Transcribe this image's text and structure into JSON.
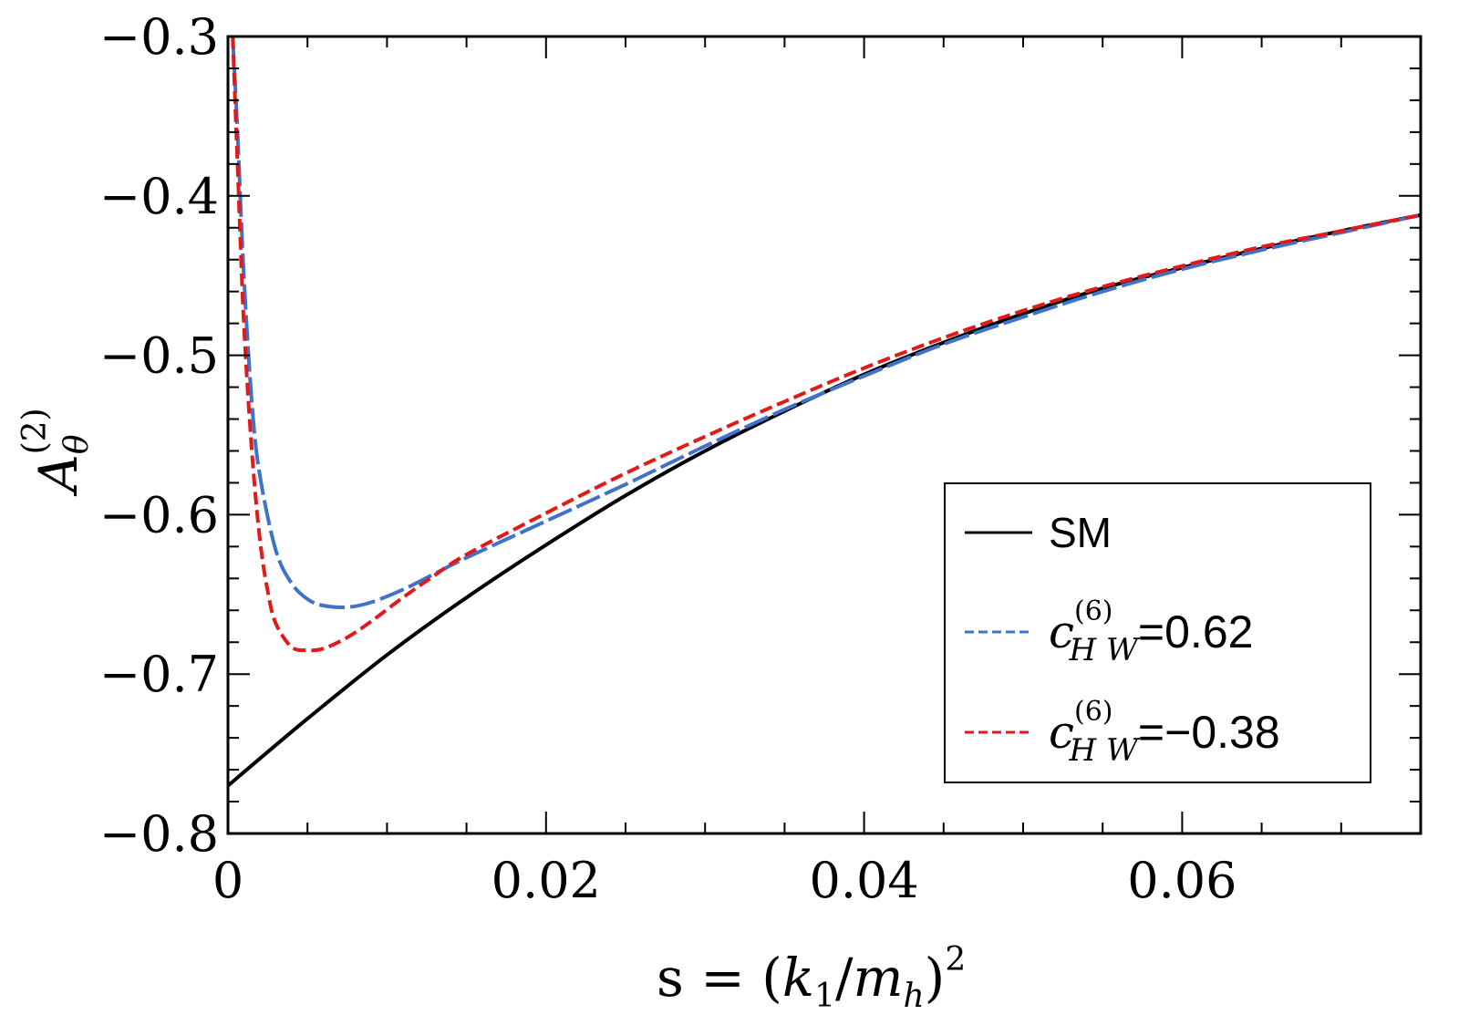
{
  "chart_data": {
    "type": "line",
    "xlim": [
      0,
      0.075
    ],
    "ylim": [
      -0.8,
      -0.3
    ],
    "x_ticks": [
      {
        "value": 0,
        "label": "0"
      },
      {
        "value": 0.02,
        "label": "0.02"
      },
      {
        "value": 0.04,
        "label": "0.04"
      },
      {
        "value": 0.06,
        "label": "0.06"
      }
    ],
    "y_ticks": [
      {
        "value": -0.3,
        "label": "−0.3"
      },
      {
        "value": -0.4,
        "label": "−0.4"
      },
      {
        "value": -0.5,
        "label": "−0.5"
      },
      {
        "value": -0.6,
        "label": "−0.6"
      },
      {
        "value": -0.7,
        "label": "−0.7"
      },
      {
        "value": -0.8,
        "label": "−0.8"
      }
    ],
    "xlabel": {
      "prefix": "s = (",
      "k": "k",
      "k_sub": "1",
      "slash": "/",
      "m": "m",
      "m_sub": "h",
      "close": ")",
      "power": "2"
    },
    "ylabel": {
      "main": "A",
      "sub": "θ",
      "sup": "(2)"
    },
    "legend": {
      "position": "bottom-right",
      "entries": [
        {
          "label": "SM"
        },
        {
          "c": "c",
          "sup": "(6)",
          "sub": "H W",
          "value": "=0.62"
        },
        {
          "c": "c",
          "sup": "(6)",
          "sub": "H W",
          "value": "=−0.38"
        }
      ]
    },
    "series": [
      {
        "name": "SM",
        "color": "#000000",
        "style": "solid",
        "x": [
          0,
          0.005,
          0.01,
          0.015,
          0.02,
          0.025,
          0.03,
          0.035,
          0.04,
          0.045,
          0.05,
          0.055,
          0.06,
          0.065,
          0.07,
          0.075
        ],
        "y": [
          -0.77,
          -0.728,
          -0.688,
          -0.652,
          -0.619,
          -0.588,
          -0.56,
          -0.535,
          -0.512,
          -0.492,
          -0.474,
          -0.458,
          -0.445,
          -0.433,
          -0.422,
          -0.412
        ]
      },
      {
        "name": "c_HW=0.62",
        "color": "#3f72cd",
        "style": "dashed",
        "x": [
          0.0003,
          0.0006,
          0.001,
          0.0015,
          0.002,
          0.003,
          0.004,
          0.005,
          0.006,
          0.0075,
          0.009,
          0.011,
          0.013,
          0.015,
          0.02,
          0.025,
          0.03,
          0.035,
          0.04,
          0.045,
          0.05,
          0.055,
          0.06,
          0.065,
          0.07,
          0.075
        ],
        "y": [
          -0.3,
          -0.36,
          -0.45,
          -0.53,
          -0.575,
          -0.622,
          -0.643,
          -0.653,
          -0.657,
          -0.658,
          -0.655,
          -0.647,
          -0.637,
          -0.627,
          -0.604,
          -0.581,
          -0.557,
          -0.534,
          -0.513,
          -0.493,
          -0.476,
          -0.46,
          -0.446,
          -0.434,
          -0.423,
          -0.412
        ]
      },
      {
        "name": "c_HW=-0.38",
        "color": "#e21a1a",
        "style": "dashed",
        "x": [
          0.0003,
          0.0006,
          0.001,
          0.0015,
          0.002,
          0.0025,
          0.003,
          0.004,
          0.005,
          0.006,
          0.0075,
          0.009,
          0.011,
          0.013,
          0.015,
          0.02,
          0.025,
          0.03,
          0.035,
          0.04,
          0.045,
          0.05,
          0.055,
          0.06,
          0.065,
          0.07,
          0.075
        ],
        "y": [
          -0.3,
          -0.38,
          -0.48,
          -0.56,
          -0.615,
          -0.648,
          -0.668,
          -0.683,
          -0.685,
          -0.684,
          -0.677,
          -0.667,
          -0.652,
          -0.638,
          -0.625,
          -0.599,
          -0.574,
          -0.551,
          -0.529,
          -0.508,
          -0.489,
          -0.472,
          -0.457,
          -0.444,
          -0.432,
          -0.422,
          -0.412
        ]
      }
    ]
  }
}
